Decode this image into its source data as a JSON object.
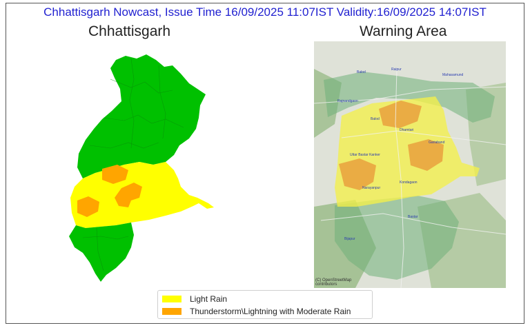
{
  "header": {
    "text": "Chhattisgarh Nowcast, Issue Time 16/09/2025 11:07IST  Validity:16/09/2025 14:07IST"
  },
  "left_map": {
    "title": "Chhattisgarh"
  },
  "right_map": {
    "title": "Warning Area",
    "places": [
      "Balod",
      "Raipur",
      "Mahasamund",
      "Rajnandgaon",
      "Balod",
      "Dhamtari",
      "Gariaband",
      "Uttar Bastar Kanker",
      "Kondagaon",
      "Narayanpur",
      "Bastar",
      "Bijapur"
    ],
    "attribution": "(C) OpenStreetMap contributors"
  },
  "legend": {
    "items": [
      {
        "label": "Light Rain",
        "color": "#ffff00"
      },
      {
        "label": "Thunderstorm\\Lightning with Moderate Rain",
        "color": "#ffa500"
      }
    ]
  },
  "colors": {
    "no_warning": "#00c000",
    "light_rain": "#ffff00",
    "thunderstorm": "#ffa500",
    "header_text": "#1f1fd0"
  }
}
